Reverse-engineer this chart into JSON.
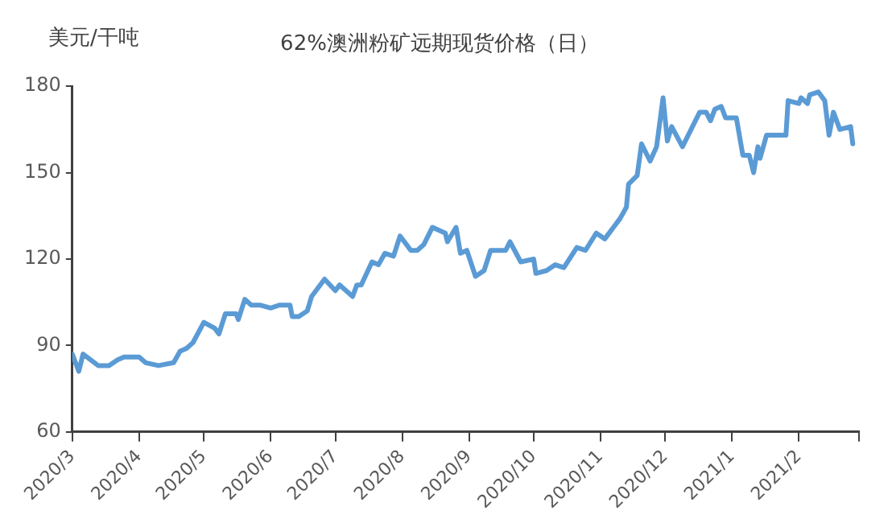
{
  "chart_data": {
    "type": "line",
    "title": "62%澳洲粉矿远期现货价格（日）",
    "ylabel": "美元/干吨",
    "x": [
      "2020-03-01",
      "2020-03-04",
      "2020-03-06",
      "2020-03-13",
      "2020-03-18",
      "2020-03-22",
      "2020-03-25",
      "2020-04-01",
      "2020-04-04",
      "2020-04-10",
      "2020-04-17",
      "2020-04-20",
      "2020-04-23",
      "2020-04-26",
      "2020-05-01",
      "2020-05-06",
      "2020-05-08",
      "2020-05-11",
      "2020-05-16",
      "2020-05-17",
      "2020-05-20",
      "2020-05-23",
      "2020-05-27",
      "2020-06-01",
      "2020-06-05",
      "2020-06-10",
      "2020-06-11",
      "2020-06-14",
      "2020-06-18",
      "2020-06-20",
      "2020-06-26",
      "2020-07-01",
      "2020-07-03",
      "2020-07-09",
      "2020-07-11",
      "2020-07-13",
      "2020-07-18",
      "2020-07-21",
      "2020-07-24",
      "2020-07-28",
      "2020-07-31",
      "2020-08-05",
      "2020-08-08",
      "2020-08-11",
      "2020-08-15",
      "2020-08-21",
      "2020-08-22",
      "2020-08-26",
      "2020-08-28",
      "2020-08-31",
      "2020-09-04",
      "2020-09-08",
      "2020-09-11",
      "2020-09-18",
      "2020-09-20",
      "2020-09-25",
      "2020-10-01",
      "2020-10-02",
      "2020-10-07",
      "2020-10-11",
      "2020-10-15",
      "2020-10-21",
      "2020-10-25",
      "2020-10-30",
      "2020-11-03",
      "2020-11-06",
      "2020-11-10",
      "2020-11-13",
      "2020-11-14",
      "2020-11-18",
      "2020-11-20",
      "2020-11-24",
      "2020-11-27",
      "2020-11-30",
      "2020-12-02",
      "2020-12-04",
      "2020-12-09",
      "2020-12-17",
      "2020-12-20",
      "2020-12-22",
      "2020-12-24",
      "2020-12-27",
      "2020-12-29",
      "2021-01-03",
      "2021-01-06",
      "2021-01-09",
      "2021-01-11",
      "2021-01-13",
      "2021-01-14",
      "2021-01-17",
      "2021-01-26",
      "2021-01-27",
      "2021-02-01",
      "2021-02-02",
      "2021-02-05",
      "2021-02-06",
      "2021-02-10",
      "2021-02-13",
      "2021-02-15",
      "2021-02-17",
      "2021-02-20",
      "2021-02-25",
      "2021-02-26"
    ],
    "series": [
      {
        "color": "#5b9bd5",
        "values": [
          87,
          81,
          87,
          83,
          83,
          85,
          86,
          86,
          84,
          83,
          84,
          88,
          89,
          91,
          98,
          96,
          94,
          101,
          101,
          99,
          106,
          104,
          104,
          103,
          104,
          104,
          100,
          100,
          102,
          107,
          113,
          109,
          111,
          107,
          111,
          111,
          119,
          118,
          122,
          121,
          128,
          123,
          123,
          125,
          131,
          129,
          126,
          131,
          122,
          123,
          114,
          116,
          123,
          123,
          126,
          119,
          120,
          115,
          116,
          118,
          117,
          124,
          123,
          129,
          127,
          130,
          134,
          138,
          146,
          149,
          160,
          154,
          159,
          176,
          161,
          166,
          159,
          171,
          171,
          168,
          172,
          173,
          169,
          169,
          156,
          156,
          150,
          159,
          155,
          163,
          163,
          175,
          174,
          176,
          174,
          177,
          178,
          175,
          163,
          171,
          165,
          166,
          160
        ]
      }
    ],
    "xlim": [
      "2020-03-01",
      "2021-03-01"
    ],
    "xticks": [
      {
        "value": "2020-03-01",
        "label": "2020/3"
      },
      {
        "value": "2020-04-01",
        "label": "2020/4"
      },
      {
        "value": "2020-05-01",
        "label": "2020/5"
      },
      {
        "value": "2020-06-01",
        "label": "2020/6"
      },
      {
        "value": "2020-07-01",
        "label": "2020/7"
      },
      {
        "value": "2020-08-01",
        "label": "2020/8"
      },
      {
        "value": "2020-09-01",
        "label": "2020/9"
      },
      {
        "value": "2020-10-01",
        "label": "2020/10"
      },
      {
        "value": "2020-11-01",
        "label": "2020/11"
      },
      {
        "value": "2020-12-01",
        "label": "2020/12"
      },
      {
        "value": "2021-01-01",
        "label": "2021/1"
      },
      {
        "value": "2021-02-01",
        "label": "2021/2"
      },
      {
        "value": "2021-03-01",
        "label": null
      }
    ],
    "ylim": [
      60,
      180
    ],
    "yticks": [
      60,
      90,
      120,
      150,
      180
    ],
    "grid": false,
    "legend": false,
    "marker": "none",
    "line_style": "solid"
  }
}
